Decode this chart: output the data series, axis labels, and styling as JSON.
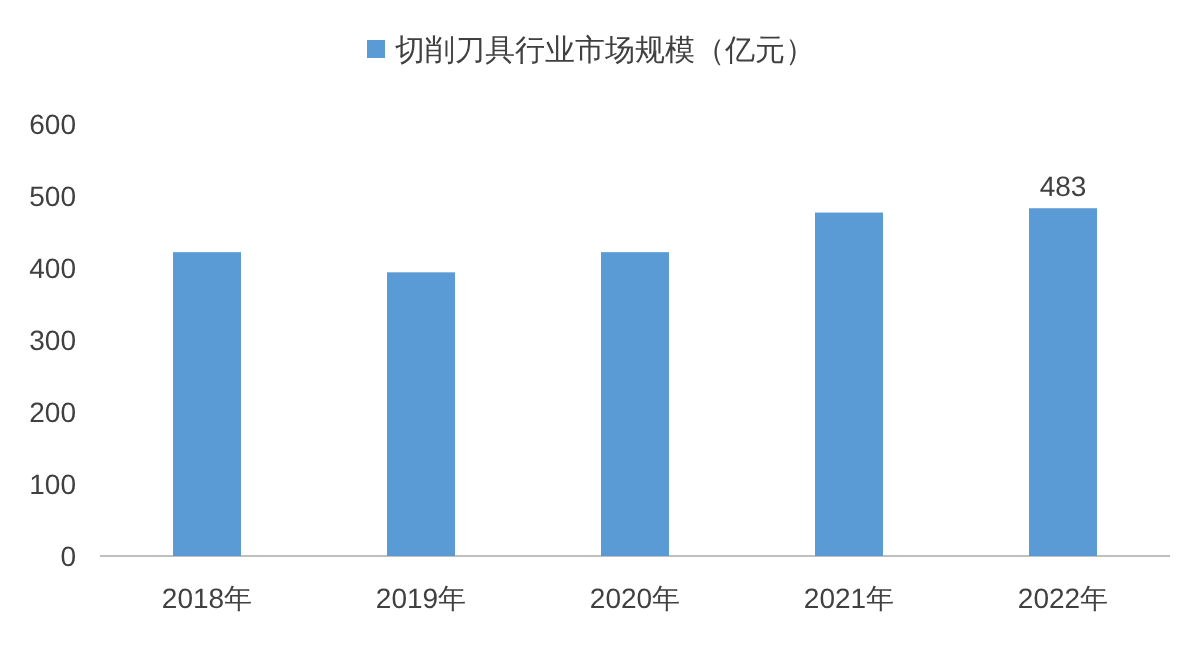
{
  "chart_data": {
    "type": "bar",
    "legend": "top",
    "categories": [
      "2018年",
      "2019年",
      "2020年",
      "2021年",
      "2022年"
    ],
    "series": [
      {
        "name": "切削刀具行业市场规模（亿元）",
        "color": "#5b9bd5",
        "values": [
          422,
          394,
          422,
          477,
          483
        ],
        "value_labels": [
          null,
          null,
          null,
          null,
          "483"
        ]
      }
    ],
    "ylim": [
      0,
      600
    ],
    "yticks": [
      0,
      100,
      200,
      300,
      400,
      500,
      600
    ]
  }
}
